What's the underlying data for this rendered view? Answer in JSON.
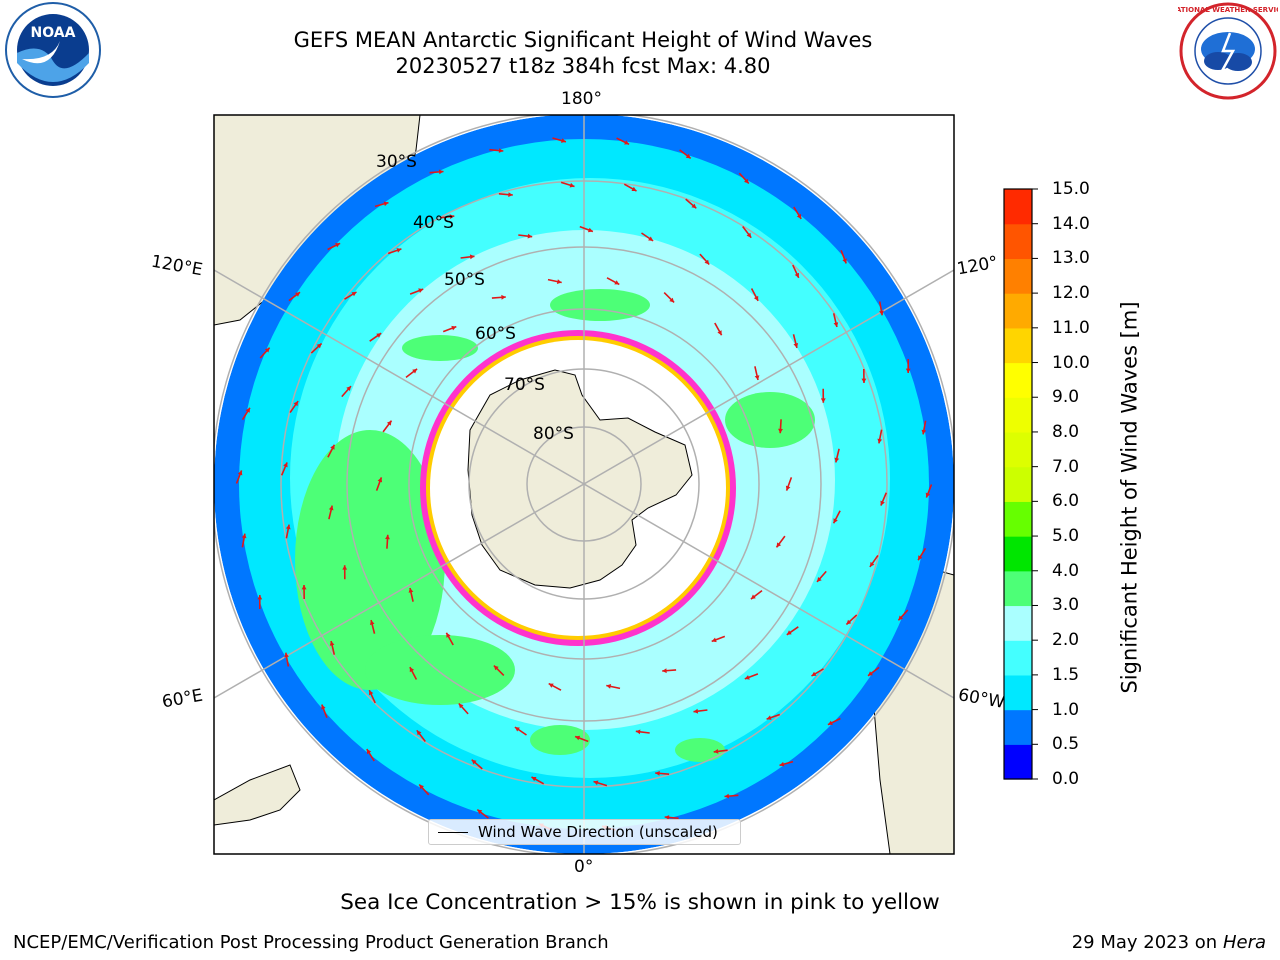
{
  "header": {
    "title_line1": "GEFS MEAN Antarctic Significant Height of Wind Waves",
    "title_line2": "20230527 t18z 384h fcst   Max: 4.80"
  },
  "map": {
    "projection": "south-polar-stereographic",
    "longitude_labels": {
      "top": "180°",
      "bottom": "0°",
      "left_upper": "120°E",
      "left_lower": "60°E",
      "right_upper": "120°",
      "right_lower": "60°W"
    },
    "latitude_labels": [
      "30°S",
      "40°S",
      "50°S",
      "60°S",
      "70°S",
      "80°S"
    ],
    "land_color": "#efedda",
    "sea_ice_colors": [
      "#ff33cc",
      "#ffcc00",
      "#ffff66"
    ],
    "arrow_color": "#e01818",
    "legend_label": "Wind Wave Direction (unscaled)"
  },
  "colorbar": {
    "label": "Significant Height of Wind Waves [m]",
    "ticks": [
      "0.0",
      "0.5",
      "1.0",
      "1.5",
      "2.0",
      "3.0",
      "4.0",
      "5.0",
      "6.0",
      "7.0",
      "8.0",
      "9.0",
      "10.0",
      "11.0",
      "12.0",
      "13.0",
      "14.0",
      "15.0"
    ],
    "colors": [
      "#0000ff",
      "#0077ff",
      "#00e8ff",
      "#44ffff",
      "#aaffff",
      "#4dff77",
      "#00e600",
      "#66ff00",
      "#ccff00",
      "#ddff00",
      "#eeff00",
      "#ffff00",
      "#ffd500",
      "#ffaa00",
      "#ff8000",
      "#ff5500",
      "#ff2a00"
    ]
  },
  "logos": {
    "left_text": "NOAA",
    "right_text": "NATIONAL WEATHER SERVICE"
  },
  "notes": {
    "sea_ice": "Sea Ice Concentration > 15% is shown in pink to yellow"
  },
  "footer": {
    "left": "NCEP/EMC/Verification Post Processing Product Generation Branch",
    "date": "29 May 2023 on",
    "system": "Hera"
  }
}
